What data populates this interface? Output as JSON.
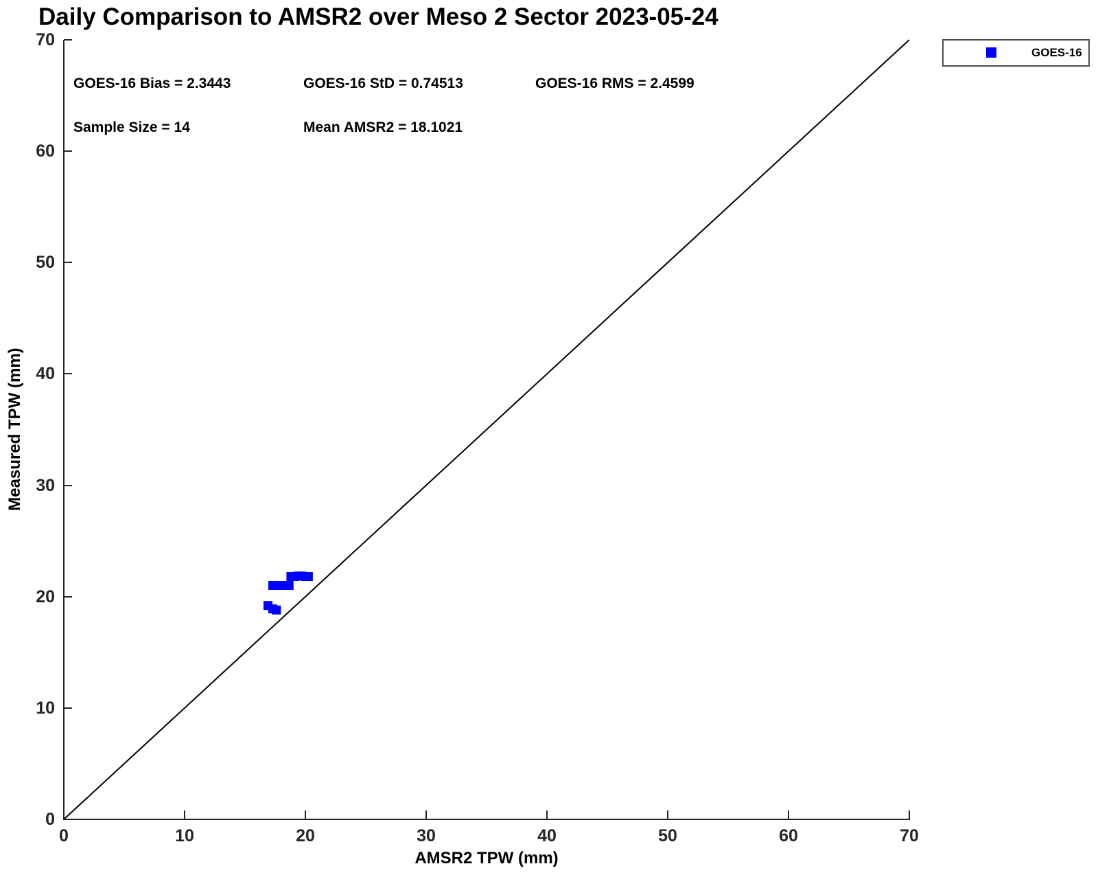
{
  "title": "Daily Comparison to AMSR2 over Meso 2 Sector 2023-05-24",
  "legend": {
    "items": [
      {
        "label": "GOES-16",
        "marker": "blue-square",
        "color": "#0000ff"
      }
    ]
  },
  "chart_data": {
    "type": "scatter",
    "title": "Daily Comparison to AMSR2 over Meso 2 Sector 2023-05-24",
    "xlabel": "AMSR2 TPW (mm)",
    "ylabel": "Measured TPW (mm)",
    "xlim": [
      0,
      70
    ],
    "ylim": [
      0,
      70
    ],
    "x_ticks": [
      0,
      10,
      20,
      30,
      40,
      50,
      60,
      70
    ],
    "y_ticks": [
      0,
      10,
      20,
      30,
      40,
      50,
      60,
      70
    ],
    "grid": false,
    "legend_position": "top-right-outside",
    "identity_line": {
      "from": [
        0,
        0
      ],
      "to": [
        70,
        70
      ],
      "color": "#000000"
    },
    "annotations": {
      "bias": "GOES-16 Bias = 2.3443",
      "std": "GOES-16 StD = 0.74513",
      "rms": "GOES-16 RMS = 2.4599",
      "sample_size": "Sample Size = 14",
      "mean_amsr2": "Mean AMSR2 = 18.1021"
    },
    "series": [
      {
        "name": "GOES-16",
        "color": "#0000ff",
        "marker": "square",
        "marker_px": 13,
        "points": [
          [
            16.9,
            19.2
          ],
          [
            17.3,
            18.9
          ],
          [
            17.6,
            18.8
          ],
          [
            17.3,
            21.0
          ],
          [
            17.65,
            21.0
          ],
          [
            18.0,
            21.0
          ],
          [
            18.35,
            21.0
          ],
          [
            18.65,
            21.0
          ],
          [
            18.8,
            21.8
          ],
          [
            19.1,
            21.8
          ],
          [
            19.4,
            21.85
          ],
          [
            19.7,
            21.85
          ],
          [
            20.0,
            21.8
          ],
          [
            20.25,
            21.8
          ]
        ]
      }
    ]
  }
}
